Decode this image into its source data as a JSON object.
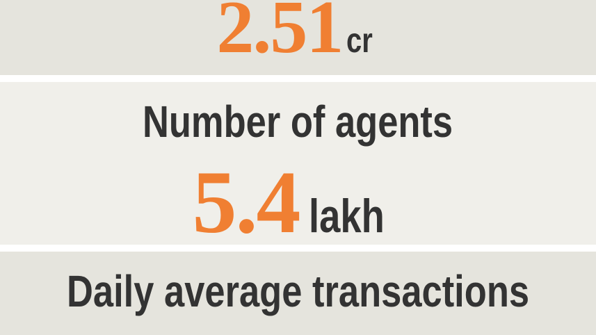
{
  "items": [
    {
      "value": 2.51,
      "unit": "cr"
    },
    {
      "label": "Number of agents",
      "value": 5.4,
      "unit": "lakh"
    },
    {
      "label": "Daily average transactions"
    }
  ]
}
